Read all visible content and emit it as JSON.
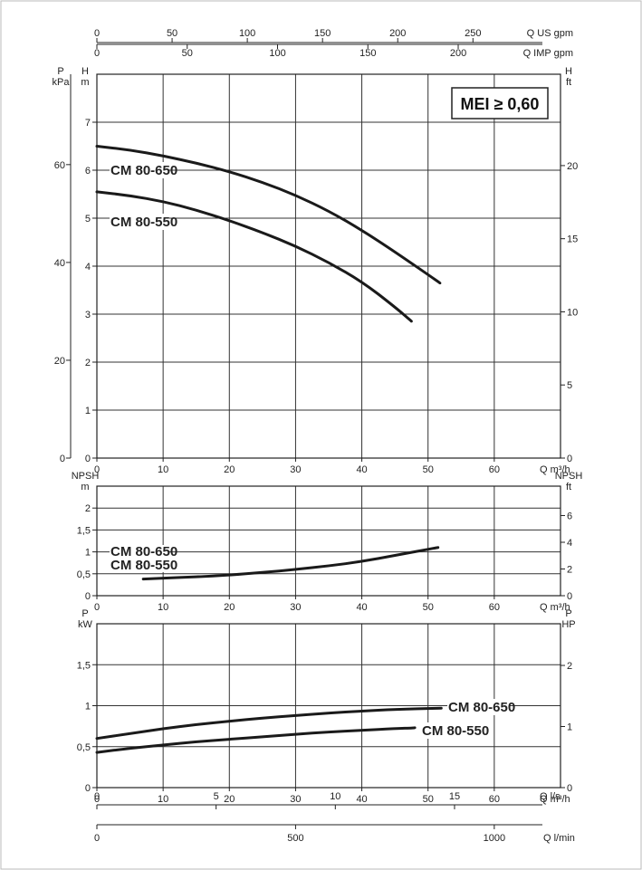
{
  "badge": "MEI ≥ 0,60",
  "top_scales": [
    {
      "label": "Q US gpm",
      "ticks": [
        0,
        50,
        100,
        150,
        200,
        250
      ],
      "per_m3h": 4.40287
    },
    {
      "label": "Q IMP gpm",
      "ticks": [
        0,
        50,
        100,
        150,
        200
      ],
      "per_m3h": 3.66614
    }
  ],
  "bottom_scales": [
    {
      "label": "Q l/s",
      "ticks": [
        0,
        5,
        10,
        15
      ],
      "per_m3h": 0.277778
    },
    {
      "label": "Q l/min",
      "ticks": [
        0,
        500,
        1000
      ],
      "per_m3h": 16.6667
    }
  ],
  "chart_data": [
    {
      "type": "line",
      "id": "head",
      "x_label": "Q m³/h",
      "x_ticks": [
        0,
        10,
        20,
        30,
        40,
        50,
        60
      ],
      "xlim": [
        0,
        70
      ],
      "left_axes": [
        {
          "label": "P",
          "unit": "kPa",
          "ticks": [
            0,
            20,
            40,
            60
          ],
          "per_unit": 9.81
        },
        {
          "label": "H",
          "unit": "m",
          "ticks": [
            0,
            1,
            2,
            3,
            4,
            5,
            6,
            7
          ],
          "per_unit": 1
        }
      ],
      "right_axis": {
        "label": "H",
        "unit": "ft",
        "ticks": [
          0,
          5,
          10,
          15,
          20
        ],
        "per_unit": 3.2808
      },
      "ylim": [
        0,
        8
      ],
      "series": [
        {
          "name": "CM 80-650",
          "x": [
            0,
            5,
            10,
            15,
            20,
            25,
            30,
            35,
            40,
            45,
            51.8
          ],
          "y": [
            6.5,
            6.42,
            6.3,
            6.15,
            5.97,
            5.75,
            5.48,
            5.15,
            4.75,
            4.3,
            3.65
          ]
        },
        {
          "name": "CM 80-550",
          "x": [
            0,
            5,
            10,
            15,
            20,
            25,
            30,
            35,
            40,
            45,
            47.5
          ],
          "y": [
            5.55,
            5.47,
            5.35,
            5.17,
            4.95,
            4.7,
            4.42,
            4.08,
            3.68,
            3.15,
            2.85
          ]
        }
      ]
    },
    {
      "type": "line",
      "id": "npsh",
      "x_label": "Q m³/h",
      "x_ticks": [
        0,
        10,
        20,
        30,
        40,
        50,
        60
      ],
      "xlim": [
        0,
        70
      ],
      "left_axes": [
        {
          "label": "NPSH",
          "unit": "m",
          "ticks": [
            "0",
            "0,5",
            "1",
            "1,5",
            "2"
          ],
          "values": [
            0,
            0.5,
            1,
            1.5,
            2
          ]
        }
      ],
      "right_axis": {
        "label": "NPSH",
        "unit": "ft",
        "ticks": [
          0,
          2,
          4,
          6
        ],
        "per_unit": 3.2808
      },
      "ylim": [
        0,
        2.5
      ],
      "series_labels": [
        "CM 80-650",
        "CM 80-550"
      ],
      "series": [
        {
          "name": "CM 80-650 / CM 80-550",
          "x": [
            7,
            10,
            15,
            20,
            25,
            30,
            35,
            40,
            45,
            51.5
          ],
          "y": [
            0.38,
            0.4,
            0.43,
            0.47,
            0.53,
            0.6,
            0.68,
            0.78,
            0.92,
            1.1
          ]
        }
      ]
    },
    {
      "type": "line",
      "id": "power",
      "x_label": "Q m³/h",
      "x_ticks": [
        0,
        10,
        20,
        30,
        40,
        50,
        60
      ],
      "xlim": [
        0,
        70
      ],
      "left_axes": [
        {
          "label": "P",
          "unit": "kW",
          "ticks": [
            "0",
            "0,5",
            "1",
            "1,5"
          ],
          "values": [
            0,
            0.5,
            1,
            1.5
          ]
        }
      ],
      "right_axis": {
        "label": "P",
        "unit": "HP",
        "ticks": [
          0,
          1,
          2
        ],
        "per_unit": 1.341
      },
      "ylim": [
        0,
        2
      ],
      "series": [
        {
          "name": "CM 80-650",
          "x": [
            0,
            5,
            10,
            15,
            20,
            25,
            30,
            35,
            40,
            45,
            52
          ],
          "y": [
            0.6,
            0.66,
            0.72,
            0.77,
            0.81,
            0.85,
            0.88,
            0.91,
            0.935,
            0.955,
            0.97
          ]
        },
        {
          "name": "CM 80-550",
          "x": [
            0,
            5,
            10,
            15,
            20,
            25,
            30,
            35,
            40,
            45,
            48
          ],
          "y": [
            0.43,
            0.48,
            0.52,
            0.56,
            0.59,
            0.62,
            0.65,
            0.68,
            0.7,
            0.72,
            0.73
          ]
        }
      ]
    }
  ]
}
